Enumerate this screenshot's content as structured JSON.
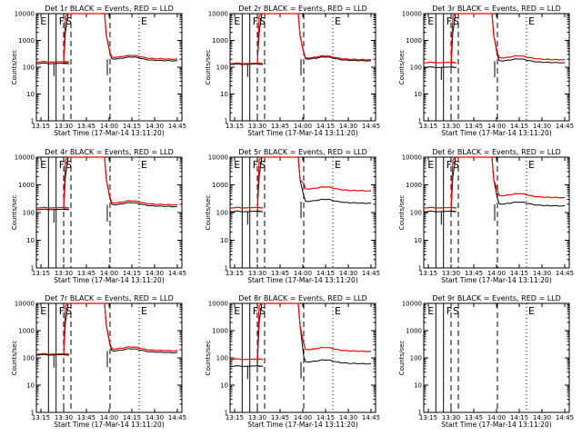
{
  "chart_data": {
    "type": "line",
    "figure": "RHESSI detector count rates, 9 panels (3x3)",
    "y_scale": "log",
    "ylim": [
      1,
      10000
    ],
    "ytick_labels": [
      "1",
      "10",
      "100",
      "1000",
      "10000"
    ],
    "xlim": [
      13.2,
      14.8
    ],
    "xtick_labels": [
      "13:15",
      "13:30",
      "13:45",
      "14:00",
      "14:15",
      "14:30",
      "14:45"
    ],
    "ylabel": "Counts/sec",
    "xlabel": "Start Time (17-Mar-14 13:11:20)",
    "legend": "BLACK = Events, RED = LLD",
    "marker_labels": [
      "E",
      "F",
      "S",
      "E"
    ],
    "panels": [
      {
        "title": "Det 1r BLACK = Events, RED = LLD",
        "red_pre": 160,
        "black_pre": 140,
        "red_post": 230,
        "black_post": 200,
        "has_data": true
      },
      {
        "title": "Det 2r BLACK = Events, RED = LLD",
        "red_pre": 140,
        "black_pre": 130,
        "red_post": 220,
        "black_post": 200,
        "has_data": true
      },
      {
        "title": "Det 3r BLACK = Events, RED = LLD",
        "red_pre": 150,
        "black_pre": 100,
        "red_post": 220,
        "black_post": 170,
        "has_data": true
      },
      {
        "title": "Det 4r BLACK = Events, RED = LLD",
        "red_pre": 150,
        "black_pre": 130,
        "red_post": 220,
        "black_post": 190,
        "has_data": true
      },
      {
        "title": "Det 5r BLACK = Events, RED = LLD",
        "red_pre": 150,
        "black_pre": 110,
        "red_post": 700,
        "black_post": 250,
        "has_data": true
      },
      {
        "title": "Det 6r BLACK = Events, RED = LLD",
        "red_pre": 150,
        "black_pre": 110,
        "red_post": 400,
        "black_post": 200,
        "has_data": true
      },
      {
        "title": "Det 7r BLACK = Events, RED = LLD",
        "red_pre": 140,
        "black_pre": 130,
        "red_post": 210,
        "black_post": 180,
        "has_data": true
      },
      {
        "title": "Det 8r BLACK = Events, RED = LLD",
        "red_pre": 90,
        "black_pre": 50,
        "red_post": 200,
        "black_post": 70,
        "has_data": true
      },
      {
        "title": "Det 9r BLACK = Events, RED = LLD",
        "has_data": false
      }
    ],
    "colors": {
      "events": "#000000",
      "lld": "#ff0000",
      "background": "#ffffff",
      "axes": "#000000"
    }
  }
}
